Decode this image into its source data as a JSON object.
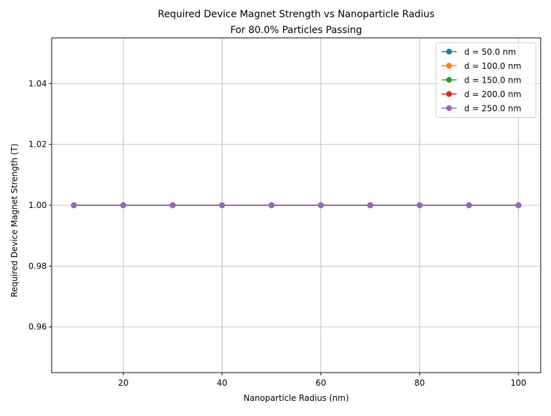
{
  "chart_data": {
    "type": "line",
    "title_line1": "Required Device Magnet Strength vs Nanoparticle Radius",
    "title_line2": "For 80.0% Particles Passing",
    "xlabel": "Nanoparticle Radius (nm)",
    "ylabel": "Required Device Magnet Strength (T)",
    "x": [
      10,
      20,
      30,
      40,
      50,
      60,
      70,
      80,
      90,
      100
    ],
    "xlim": [
      5.5,
      104.5
    ],
    "ylim": [
      0.945,
      1.055
    ],
    "x_ticks": [
      20,
      40,
      60,
      80,
      100
    ],
    "x_tick_labels": [
      "20",
      "40",
      "60",
      "80",
      "100"
    ],
    "y_ticks": [
      0.96,
      0.98,
      1.0,
      1.02,
      1.04
    ],
    "y_tick_labels": [
      "0.96",
      "0.98",
      "1.00",
      "1.02",
      "1.04"
    ],
    "grid": true,
    "legend_position": "top-right",
    "marker": "circle",
    "series": [
      {
        "name": "d = 50.0 nm",
        "color": "#1f77b4",
        "values": [
          1,
          1,
          1,
          1,
          1,
          1,
          1,
          1,
          1,
          1
        ]
      },
      {
        "name": "d = 100.0 nm",
        "color": "#ff7f0e",
        "values": [
          1,
          1,
          1,
          1,
          1,
          1,
          1,
          1,
          1,
          1
        ]
      },
      {
        "name": "d = 150.0 nm",
        "color": "#2ca02c",
        "values": [
          1,
          1,
          1,
          1,
          1,
          1,
          1,
          1,
          1,
          1
        ]
      },
      {
        "name": "d = 200.0 nm",
        "color": "#d62728",
        "values": [
          1,
          1,
          1,
          1,
          1,
          1,
          1,
          1,
          1,
          1
        ]
      },
      {
        "name": "d = 250.0 nm",
        "color": "#9467bd",
        "values": [
          1,
          1,
          1,
          1,
          1,
          1,
          1,
          1,
          1,
          1
        ]
      }
    ]
  }
}
